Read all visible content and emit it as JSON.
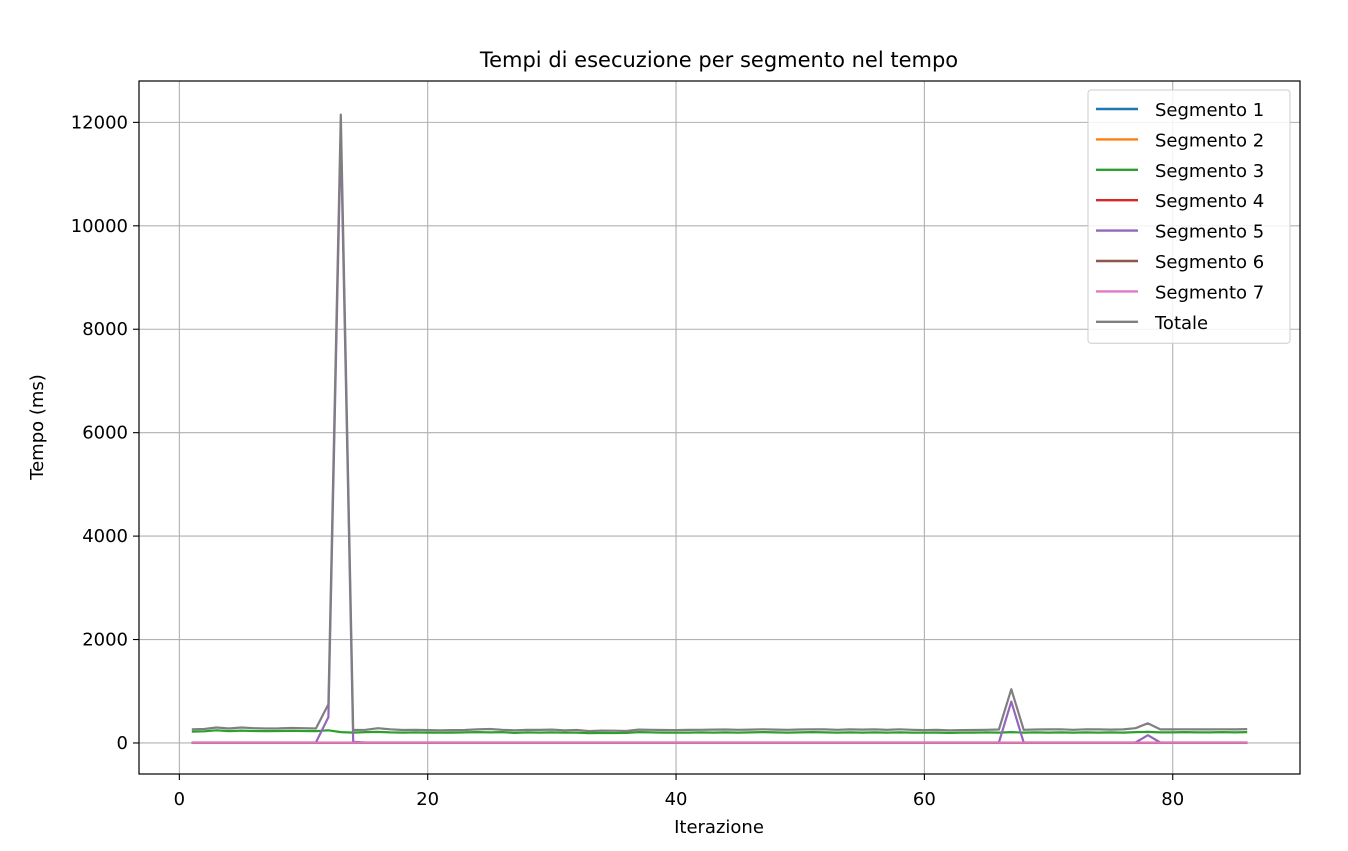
{
  "chart_data": {
    "type": "line",
    "title": "Tempi di esecuzione per segmento nel tempo",
    "xlabel": "Iterazione",
    "ylabel": "Tempo (ms)",
    "xlim": [
      -3.25,
      90.25
    ],
    "ylim": [
      -600,
      12800
    ],
    "xticks": [
      0,
      20,
      40,
      60,
      80
    ],
    "yticks": [
      0,
      2000,
      4000,
      6000,
      8000,
      10000,
      12000
    ],
    "grid": true,
    "legend_position": "top-right",
    "series": [
      {
        "name": "Segmento 1",
        "color": "#1f77b4",
        "points": [
          [
            1,
            2
          ],
          [
            86,
            2
          ]
        ]
      },
      {
        "name": "Segmento 2",
        "color": "#ff7f0e",
        "points": [
          [
            1,
            3
          ],
          [
            86,
            3
          ]
        ]
      },
      {
        "name": "Segmento 3",
        "color": "#2ca02c",
        "points": [
          [
            1,
            220
          ],
          [
            2,
            225
          ],
          [
            3,
            245
          ],
          [
            4,
            230
          ],
          [
            5,
            240
          ],
          [
            6,
            232
          ],
          [
            7,
            230
          ],
          [
            8,
            232
          ],
          [
            9,
            235
          ],
          [
            10,
            232
          ],
          [
            11,
            230
          ],
          [
            12,
            245
          ],
          [
            13,
            210
          ],
          [
            14,
            200
          ],
          [
            15,
            210
          ],
          [
            16,
            215
          ],
          [
            17,
            205
          ],
          [
            18,
            200
          ],
          [
            19,
            205
          ],
          [
            20,
            200
          ],
          [
            21,
            198
          ],
          [
            22,
            200
          ],
          [
            23,
            205
          ],
          [
            24,
            210
          ],
          [
            25,
            205
          ],
          [
            26,
            210
          ],
          [
            27,
            195
          ],
          [
            28,
            205
          ],
          [
            29,
            200
          ],
          [
            30,
            205
          ],
          [
            31,
            200
          ],
          [
            32,
            198
          ],
          [
            33,
            190
          ],
          [
            34,
            195
          ],
          [
            35,
            192
          ],
          [
            36,
            195
          ],
          [
            37,
            210
          ],
          [
            38,
            205
          ],
          [
            39,
            200
          ],
          [
            40,
            198
          ],
          [
            41,
            200
          ],
          [
            42,
            205
          ],
          [
            43,
            200
          ],
          [
            44,
            205
          ],
          [
            45,
            200
          ],
          [
            46,
            205
          ],
          [
            47,
            210
          ],
          [
            48,
            205
          ],
          [
            49,
            200
          ],
          [
            50,
            205
          ],
          [
            51,
            210
          ],
          [
            52,
            205
          ],
          [
            53,
            200
          ],
          [
            54,
            205
          ],
          [
            55,
            200
          ],
          [
            56,
            205
          ],
          [
            57,
            200
          ],
          [
            58,
            205
          ],
          [
            59,
            200
          ],
          [
            60,
            198
          ],
          [
            61,
            200
          ],
          [
            62,
            195
          ],
          [
            63,
            198
          ],
          [
            64,
            200
          ],
          [
            65,
            205
          ],
          [
            66,
            200
          ],
          [
            67,
            210
          ],
          [
            68,
            200
          ],
          [
            69,
            205
          ],
          [
            70,
            200
          ],
          [
            71,
            205
          ],
          [
            72,
            200
          ],
          [
            73,
            205
          ],
          [
            74,
            200
          ],
          [
            75,
            205
          ],
          [
            76,
            200
          ],
          [
            77,
            210
          ],
          [
            78,
            215
          ],
          [
            79,
            205
          ],
          [
            80,
            205
          ],
          [
            81,
            210
          ],
          [
            82,
            205
          ],
          [
            83,
            205
          ],
          [
            84,
            210
          ],
          [
            85,
            205
          ],
          [
            86,
            210
          ]
        ]
      },
      {
        "name": "Segmento 4",
        "color": "#d62728",
        "points": [
          [
            1,
            5
          ],
          [
            86,
            5
          ]
        ]
      },
      {
        "name": "Segmento 5",
        "color": "#9467bd",
        "points": [
          [
            1,
            10
          ],
          [
            11,
            10
          ],
          [
            12,
            500
          ],
          [
            13,
            11800
          ],
          [
            14,
            20
          ],
          [
            15,
            10
          ],
          [
            66,
            10
          ],
          [
            67,
            800
          ],
          [
            68,
            10
          ],
          [
            77,
            10
          ],
          [
            78,
            150
          ],
          [
            79,
            10
          ],
          [
            86,
            10
          ]
        ]
      },
      {
        "name": "Segmento 6",
        "color": "#8c564b",
        "points": [
          [
            1,
            3
          ],
          [
            86,
            3
          ]
        ]
      },
      {
        "name": "Segmento 7",
        "color": "#e377c2",
        "points": [
          [
            1,
            5
          ],
          [
            86,
            5
          ]
        ]
      },
      {
        "name": "Totale",
        "color": "#7f7f7f",
        "points": [
          [
            1,
            265
          ],
          [
            2,
            270
          ],
          [
            3,
            300
          ],
          [
            4,
            280
          ],
          [
            5,
            300
          ],
          [
            6,
            285
          ],
          [
            7,
            280
          ],
          [
            8,
            282
          ],
          [
            9,
            290
          ],
          [
            10,
            285
          ],
          [
            11,
            280
          ],
          [
            12,
            750
          ],
          [
            13,
            12150
          ],
          [
            14,
            250
          ],
          [
            15,
            255
          ],
          [
            16,
            285
          ],
          [
            17,
            265
          ],
          [
            18,
            250
          ],
          [
            19,
            255
          ],
          [
            20,
            248
          ],
          [
            21,
            245
          ],
          [
            22,
            248
          ],
          [
            23,
            250
          ],
          [
            24,
            262
          ],
          [
            25,
            270
          ],
          [
            26,
            255
          ],
          [
            27,
            245
          ],
          [
            28,
            255
          ],
          [
            29,
            252
          ],
          [
            30,
            258
          ],
          [
            31,
            245
          ],
          [
            32,
            250
          ],
          [
            33,
            230
          ],
          [
            34,
            240
          ],
          [
            35,
            238
          ],
          [
            36,
            232
          ],
          [
            37,
            258
          ],
          [
            38,
            255
          ],
          [
            39,
            250
          ],
          [
            40,
            248
          ],
          [
            41,
            252
          ],
          [
            42,
            255
          ],
          [
            43,
            258
          ],
          [
            44,
            260
          ],
          [
            45,
            255
          ],
          [
            46,
            258
          ],
          [
            47,
            265
          ],
          [
            48,
            258
          ],
          [
            49,
            255
          ],
          [
            50,
            260
          ],
          [
            51,
            265
          ],
          [
            52,
            262
          ],
          [
            53,
            255
          ],
          [
            54,
            262
          ],
          [
            55,
            258
          ],
          [
            56,
            262
          ],
          [
            57,
            255
          ],
          [
            58,
            265
          ],
          [
            59,
            255
          ],
          [
            60,
            248
          ],
          [
            61,
            252
          ],
          [
            62,
            245
          ],
          [
            63,
            248
          ],
          [
            64,
            250
          ],
          [
            65,
            255
          ],
          [
            66,
            260
          ],
          [
            67,
            1040
          ],
          [
            68,
            255
          ],
          [
            69,
            260
          ],
          [
            70,
            262
          ],
          [
            71,
            265
          ],
          [
            72,
            255
          ],
          [
            73,
            265
          ],
          [
            74,
            262
          ],
          [
            75,
            258
          ],
          [
            76,
            262
          ],
          [
            77,
            285
          ],
          [
            78,
            380
          ],
          [
            79,
            262
          ],
          [
            80,
            262
          ],
          [
            81,
            265
          ],
          [
            82,
            262
          ],
          [
            83,
            262
          ],
          [
            84,
            265
          ],
          [
            85,
            262
          ],
          [
            86,
            268
          ]
        ]
      }
    ]
  }
}
